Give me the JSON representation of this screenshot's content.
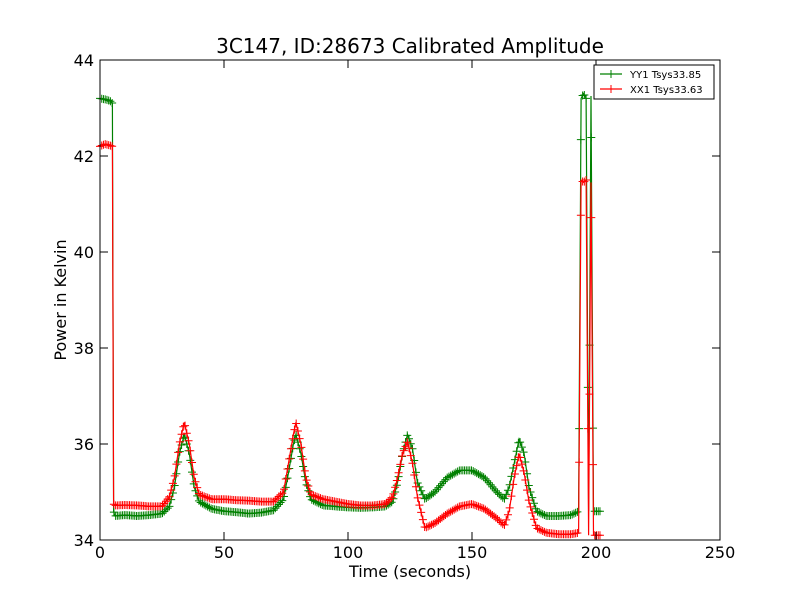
{
  "chart_data": {
    "type": "line",
    "title": "3C147, ID:28673 Calibrated Amplitude",
    "xlabel": "Time (seconds)",
    "ylabel": "Power in Kelvin",
    "xlim": [
      0,
      250
    ],
    "ylim": [
      34,
      44
    ],
    "xticks": [
      "0",
      "50",
      "100",
      "150",
      "200",
      "250"
    ],
    "yticks": [
      "34",
      "36",
      "38",
      "40",
      "42",
      "44"
    ],
    "grid": false,
    "legend_position": "top-right",
    "marker": "+",
    "series": [
      {
        "name": "YY1 Tsys33.85",
        "color": "#008000",
        "points": [
          [
            0,
            43.2
          ],
          [
            2,
            43.18
          ],
          [
            4,
            43.15
          ],
          [
            5,
            43.1
          ],
          [
            5.5,
            34.6
          ],
          [
            6,
            34.5
          ],
          [
            10,
            34.52
          ],
          [
            15,
            34.5
          ],
          [
            20,
            34.52
          ],
          [
            25,
            34.55
          ],
          [
            28,
            34.7
          ],
          [
            30,
            35.1
          ],
          [
            32,
            35.8
          ],
          [
            34,
            36.2
          ],
          [
            36,
            35.8
          ],
          [
            38,
            35.1
          ],
          [
            40,
            34.8
          ],
          [
            45,
            34.65
          ],
          [
            50,
            34.6
          ],
          [
            55,
            34.58
          ],
          [
            60,
            34.55
          ],
          [
            65,
            34.57
          ],
          [
            70,
            34.62
          ],
          [
            74,
            34.85
          ],
          [
            76,
            35.4
          ],
          [
            78,
            36.0
          ],
          [
            79,
            36.2
          ],
          [
            81,
            35.8
          ],
          [
            83,
            35.2
          ],
          [
            85,
            34.85
          ],
          [
            90,
            34.72
          ],
          [
            95,
            34.7
          ],
          [
            100,
            34.68
          ],
          [
            105,
            34.67
          ],
          [
            110,
            34.68
          ],
          [
            115,
            34.7
          ],
          [
            118,
            34.8
          ],
          [
            120,
            35.2
          ],
          [
            122,
            35.8
          ],
          [
            124,
            36.2
          ],
          [
            126,
            35.9
          ],
          [
            128,
            35.2
          ],
          [
            131,
            34.85
          ],
          [
            135,
            35.0
          ],
          [
            140,
            35.3
          ],
          [
            145,
            35.45
          ],
          [
            150,
            35.45
          ],
          [
            155,
            35.3
          ],
          [
            160,
            35.0
          ],
          [
            163,
            34.85
          ],
          [
            165,
            35.1
          ],
          [
            167,
            35.6
          ],
          [
            169,
            36.1
          ],
          [
            171,
            35.8
          ],
          [
            173,
            35.1
          ],
          [
            176,
            34.6
          ],
          [
            180,
            34.5
          ],
          [
            185,
            34.5
          ],
          [
            190,
            34.52
          ],
          [
            193,
            34.6
          ],
          [
            194,
            43.2
          ],
          [
            195,
            43.3
          ],
          [
            196,
            43.2
          ],
          [
            197,
            34.6
          ],
          [
            198,
            43.25
          ],
          [
            199,
            34.6
          ],
          [
            202,
            34.6
          ]
        ]
      },
      {
        "name": "XX1 Tsys33.63",
        "color": "#ff0000",
        "points": [
          [
            0,
            42.2
          ],
          [
            2,
            42.25
          ],
          [
            4,
            42.22
          ],
          [
            5,
            42.2
          ],
          [
            5.5,
            34.75
          ],
          [
            6,
            34.72
          ],
          [
            10,
            34.73
          ],
          [
            15,
            34.72
          ],
          [
            20,
            34.7
          ],
          [
            25,
            34.7
          ],
          [
            28,
            34.9
          ],
          [
            30,
            35.3
          ],
          [
            32,
            36.0
          ],
          [
            34,
            36.45
          ],
          [
            36,
            36.0
          ],
          [
            38,
            35.3
          ],
          [
            40,
            34.95
          ],
          [
            45,
            34.85
          ],
          [
            50,
            34.85
          ],
          [
            55,
            34.83
          ],
          [
            60,
            34.82
          ],
          [
            65,
            34.8
          ],
          [
            70,
            34.8
          ],
          [
            74,
            35.0
          ],
          [
            76,
            35.6
          ],
          [
            78,
            36.2
          ],
          [
            79,
            36.45
          ],
          [
            81,
            36.0
          ],
          [
            83,
            35.3
          ],
          [
            85,
            34.95
          ],
          [
            90,
            34.85
          ],
          [
            95,
            34.8
          ],
          [
            100,
            34.75
          ],
          [
            105,
            34.72
          ],
          [
            110,
            34.72
          ],
          [
            115,
            34.75
          ],
          [
            118,
            34.9
          ],
          [
            120,
            35.3
          ],
          [
            122,
            35.8
          ],
          [
            124,
            36.05
          ],
          [
            126,
            35.6
          ],
          [
            128,
            34.9
          ],
          [
            131,
            34.25
          ],
          [
            135,
            34.35
          ],
          [
            140,
            34.55
          ],
          [
            145,
            34.7
          ],
          [
            150,
            34.75
          ],
          [
            155,
            34.65
          ],
          [
            160,
            34.45
          ],
          [
            163,
            34.3
          ],
          [
            165,
            34.6
          ],
          [
            167,
            35.3
          ],
          [
            169,
            35.8
          ],
          [
            171,
            35.4
          ],
          [
            173,
            34.8
          ],
          [
            176,
            34.25
          ],
          [
            180,
            34.15
          ],
          [
            185,
            34.12
          ],
          [
            190,
            34.12
          ],
          [
            193,
            34.15
          ],
          [
            194,
            41.5
          ],
          [
            195,
            41.45
          ],
          [
            196,
            41.5
          ],
          [
            197,
            34.1
          ],
          [
            198,
            41.45
          ],
          [
            199,
            34.1
          ],
          [
            202,
            34.1
          ]
        ]
      }
    ]
  }
}
